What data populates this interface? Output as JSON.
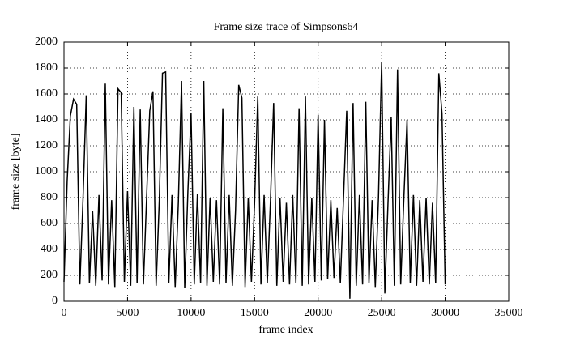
{
  "chart_data": {
    "type": "line",
    "title": "Frame size trace of Simpsons64",
    "x_label": "frame index",
    "y_label": "frame size [byte]",
    "color": "#000000",
    "grid": true,
    "xlim": [
      0,
      35000
    ],
    "ylim": [
      0,
      2000
    ],
    "xticks": [
      0,
      5000,
      10000,
      15000,
      20000,
      25000,
      30000,
      35000
    ],
    "yticks": [
      0,
      200,
      400,
      600,
      800,
      1000,
      1200,
      1400,
      1600,
      1800,
      2000
    ],
    "x": [
      0,
      250,
      500,
      750,
      1000,
      1250,
      1500,
      1750,
      2000,
      2250,
      2500,
      2750,
      3000,
      3250,
      3500,
      3750,
      4000,
      4250,
      4500,
      4750,
      5000,
      5250,
      5500,
      5750,
      6000,
      6250,
      6500,
      6750,
      7000,
      7250,
      7500,
      7750,
      8000,
      8250,
      8500,
      8750,
      9000,
      9250,
      9500,
      9750,
      10000,
      10250,
      10500,
      10750,
      11000,
      11250,
      11500,
      11750,
      12000,
      12250,
      12500,
      12750,
      13000,
      13250,
      13500,
      13750,
      14000,
      14250,
      14500,
      14750,
      15000,
      15250,
      15500,
      15750,
      16000,
      16250,
      16500,
      16750,
      17000,
      17250,
      17500,
      17750,
      18000,
      18250,
      18500,
      18750,
      19000,
      19250,
      19500,
      19750,
      20000,
      20250,
      20500,
      20750,
      21000,
      21250,
      21500,
      21750,
      22000,
      22250,
      22500,
      22750,
      23000,
      23250,
      23500,
      23750,
      24000,
      24250,
      24500,
      24750,
      25000,
      25250,
      25500,
      25750,
      26000,
      26250,
      26500,
      26750,
      27000,
      27250,
      27500,
      27750,
      28000,
      28250,
      28500,
      28750,
      29000,
      29250,
      29500,
      29750,
      30000
    ],
    "values": [
      150,
      930,
      1430,
      1560,
      1520,
      130,
      800,
      1590,
      140,
      700,
      120,
      820,
      160,
      1680,
      130,
      780,
      110,
      1640,
      1610,
      150,
      850,
      120,
      1500,
      140,
      1480,
      130,
      800,
      1470,
      1620,
      120,
      780,
      1760,
      1770,
      140,
      820,
      110,
      760,
      1700,
      100,
      850,
      1450,
      130,
      830,
      140,
      1700,
      120,
      800,
      150,
      780,
      130,
      1490,
      140,
      820,
      120,
      700,
      1670,
      1570,
      110,
      800,
      150,
      760,
      1580,
      130,
      820,
      140,
      780,
      1530,
      120,
      800,
      150,
      760,
      130,
      820,
      140,
      1490,
      120,
      1580,
      130,
      800,
      150,
      1440,
      160,
      1400,
      170,
      780,
      180,
      720,
      140,
      800,
      1470,
      20,
      1530,
      120,
      820,
      130,
      1540,
      140,
      780,
      110,
      800,
      1850,
      60,
      760,
      1420,
      120,
      1790,
      130,
      800,
      1400,
      140,
      820,
      120,
      780,
      150,
      800,
      130,
      760,
      140,
      1760,
      1450,
      130
    ]
  }
}
